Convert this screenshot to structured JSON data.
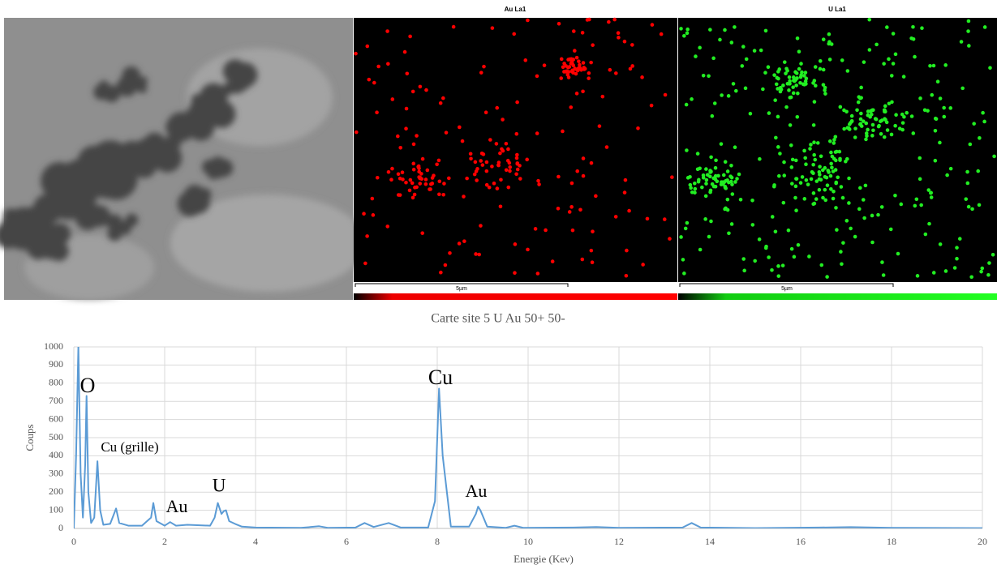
{
  "images": {
    "au_map_title": "Au La1",
    "u_map_title": "U La1",
    "scale_bar_au": "5µm",
    "scale_bar_u": "5µm"
  },
  "caption": "Carte site 5 U Au 50+ 50-",
  "chart_data": {
    "type": "line",
    "x_label": "Energie (Kev)",
    "y_label": "Coups",
    "x": [
      0,
      0.05,
      0.1,
      0.15,
      0.2,
      0.25,
      0.28,
      0.32,
      0.38,
      0.45,
      0.52,
      0.58,
      0.65,
      0.8,
      0.93,
      1.0,
      1.2,
      1.5,
      1.7,
      1.75,
      1.82,
      2.0,
      2.12,
      2.25,
      2.5,
      3.0,
      3.1,
      3.17,
      3.25,
      3.3,
      3.35,
      3.42,
      3.55,
      3.7,
      4.0,
      5.0,
      5.4,
      5.6,
      6.2,
      6.4,
      6.6,
      6.93,
      7.2,
      7.8,
      7.95,
      8.04,
      8.12,
      8.3,
      8.7,
      8.85,
      8.9,
      8.95,
      9.1,
      9.5,
      9.7,
      9.9,
      11,
      11.5,
      12,
      13.4,
      13.6,
      13.8,
      15,
      16.4,
      17.1,
      18,
      20
    ],
    "series": [
      {
        "color": "#5b9bd5",
        "values": [
          0,
          400,
          1000,
          300,
          60,
          350,
          730,
          200,
          30,
          60,
          370,
          100,
          20,
          25,
          110,
          30,
          15,
          15,
          60,
          140,
          40,
          15,
          35,
          15,
          20,
          15,
          60,
          140,
          80,
          95,
          100,
          40,
          25,
          10,
          5,
          3,
          12,
          3,
          5,
          30,
          8,
          30,
          5,
          5,
          150,
          770,
          400,
          10,
          10,
          80,
          120,
          100,
          10,
          3,
          15,
          3,
          5,
          8,
          3,
          5,
          30,
          5,
          2,
          5,
          7,
          3,
          2
        ]
      }
    ],
    "xlim": [
      0,
      20
    ],
    "xticks": [
      0,
      2,
      4,
      6,
      8,
      10,
      12,
      14,
      16,
      18,
      20
    ],
    "ylim": [
      0,
      1000
    ],
    "yticks": [
      0,
      100,
      200,
      300,
      400,
      500,
      600,
      700,
      800,
      900,
      1000
    ],
    "grid": true,
    "annotations": [
      "O",
      "Cu (grille)",
      "Au",
      "U",
      "Cu",
      "Au"
    ]
  }
}
